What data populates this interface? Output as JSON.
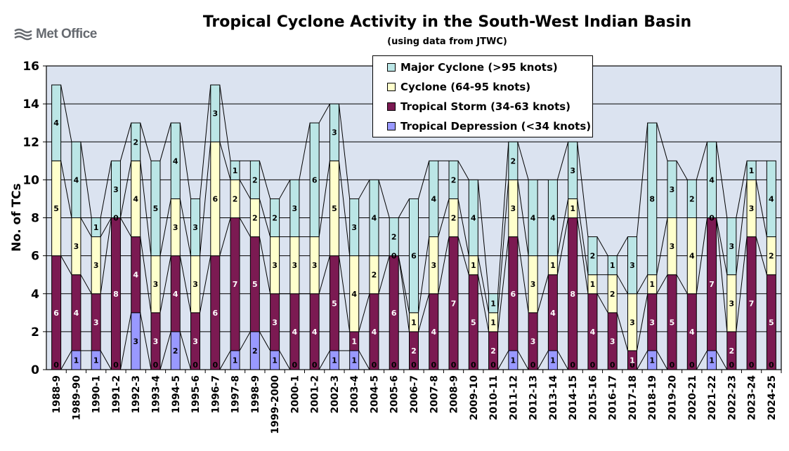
{
  "header": {
    "logo_text": "Met Office",
    "title": "Tropical Cyclone Activity in the South-West Indian Basin",
    "subtitle": "(using data from JTWC)"
  },
  "colors": {
    "td": "#9999ff",
    "ts": "#7b1a52",
    "cy": "#ffffcc",
    "major": "#bbe6e6",
    "plot_bg": "#dbe3f0"
  },
  "chart_data": {
    "type": "bar",
    "stacked": true,
    "ylabel": "No. of TCs",
    "ylim": [
      0,
      16
    ],
    "yticks": [
      0,
      2,
      4,
      6,
      8,
      10,
      12,
      14,
      16
    ],
    "grid": true,
    "legend_position": "top-center",
    "categories": [
      "1988-9",
      "1989-90",
      "1990-1",
      "1991-2",
      "1992-3",
      "1993-4",
      "1994-5",
      "1995-6",
      "1996-7",
      "1997-8",
      "1998-9",
      "1999-2000",
      "2000-1",
      "2001-2",
      "2002-3",
      "2003-4",
      "2004-5",
      "2005-6",
      "2006-7",
      "2007-8",
      "2008-9",
      "2009-10",
      "2010-11",
      "2011-12",
      "2012-13",
      "2013-14",
      "2014-15",
      "2015-16",
      "2016-17",
      "2017-18",
      "2018-19",
      "2019-20",
      "2020-21",
      "2021-22",
      "2022-23",
      "2023-24",
      "2024-25"
    ],
    "series": [
      {
        "name": "Tropical Depression (<34 knots)",
        "key": "td",
        "values": [
          0,
          1,
          1,
          0,
          3,
          0,
          2,
          0,
          0,
          1,
          2,
          1,
          0,
          0,
          1,
          1,
          0,
          0,
          0,
          0,
          0,
          0,
          0,
          1,
          0,
          1,
          0,
          0,
          0,
          0,
          1,
          0,
          0,
          1,
          0,
          0,
          0
        ]
      },
      {
        "name": "Tropical Storm (34-63 knots)",
        "key": "ts",
        "values": [
          6,
          4,
          3,
          8,
          4,
          3,
          4,
          3,
          6,
          7,
          5,
          3,
          4,
          4,
          5,
          1,
          4,
          6,
          2,
          4,
          7,
          5,
          2,
          6,
          3,
          4,
          8,
          4,
          3,
          1,
          3,
          5,
          4,
          7,
          2,
          7,
          5
        ]
      },
      {
        "name": "Cyclone (64-95 knots)",
        "key": "cy",
        "values": [
          5,
          3,
          3,
          0,
          4,
          3,
          3,
          3,
          6,
          2,
          2,
          3,
          3,
          3,
          5,
          4,
          2,
          0,
          1,
          3,
          2,
          1,
          1,
          3,
          3,
          1,
          1,
          1,
          2,
          3,
          1,
          3,
          4,
          0,
          3,
          3,
          2
        ]
      },
      {
        "name": "Major Cyclone (>95 knots)",
        "key": "major",
        "values": [
          4,
          4,
          1,
          3,
          2,
          5,
          4,
          3,
          3,
          1,
          2,
          2,
          3,
          6,
          3,
          3,
          4,
          2,
          6,
          4,
          2,
          4,
          1,
          2,
          4,
          4,
          3,
          2,
          1,
          3,
          8,
          3,
          2,
          4,
          3,
          1,
          4
        ]
      }
    ],
    "legend_order": [
      "major",
      "cy",
      "ts",
      "td"
    ]
  }
}
